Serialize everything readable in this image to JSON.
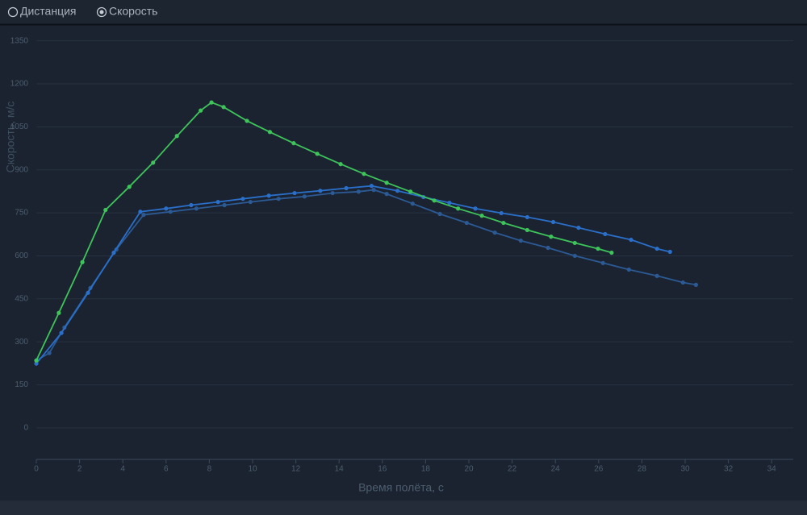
{
  "controls": {
    "options": [
      "Дистанция",
      "Скорость"
    ],
    "selected": 1
  },
  "chart_data": {
    "type": "line",
    "x_label": "Время полёта, с",
    "y_label": "Скорость, м/с",
    "xlim": [
      0,
      35
    ],
    "ylim": [
      -110,
      1380
    ],
    "xticks": [
      0,
      2,
      4,
      6,
      8,
      10,
      12,
      14,
      16,
      18,
      20,
      22,
      24,
      26,
      28,
      30,
      32,
      34
    ],
    "yticks": [
      0,
      150,
      300,
      450,
      600,
      750,
      900,
      1050,
      1200,
      1350
    ],
    "grid": true,
    "series": [
      {
        "color": "#2c5a95",
        "x": [
          0,
          0.6,
          1.3,
          2.5,
          3.7,
          4.96,
          6.2,
          7.4,
          8.7,
          9.9,
          11.2,
          12.4,
          13.7,
          14.9,
          15.6,
          16.2,
          17.4,
          18.66,
          19.9,
          21.2,
          22.4,
          23.66,
          24.9,
          26.2,
          27.4,
          28.7,
          29.9,
          30.5
        ],
        "values": [
          235,
          261,
          350,
          488,
          622,
          743,
          754,
          765,
          777,
          788,
          799,
          807,
          819,
          824,
          830,
          816,
          782,
          746,
          715,
          681,
          653,
          628,
          600,
          575,
          552,
          530,
          507,
          499
        ]
      },
      {
        "color": "#2a6fc9",
        "x": [
          0,
          1.16,
          2.39,
          3.58,
          4.81,
          6.0,
          7.16,
          8.4,
          9.55,
          10.75,
          11.94,
          13.13,
          14.33,
          15.5,
          16.7,
          17.9,
          19.1,
          20.3,
          21.5,
          22.7,
          23.9,
          25.07,
          26.3,
          27.5,
          28.7,
          29.3
        ],
        "values": [
          224,
          331,
          471,
          611,
          754,
          765,
          777,
          788,
          799,
          810,
          819,
          827,
          836,
          844,
          827,
          805,
          785,
          765,
          749,
          735,
          718,
          698,
          676,
          656,
          625,
          614
        ]
      },
      {
        "color": "#3ec45a",
        "x": [
          0,
          1.04,
          2.13,
          3.2,
          4.3,
          5.4,
          6.5,
          7.6,
          8.1,
          8.66,
          9.74,
          10.8,
          11.9,
          12.99,
          14.07,
          15.15,
          16.2,
          17.3,
          18.4,
          19.5,
          20.6,
          21.6,
          22.7,
          23.8,
          24.9,
          25.97,
          26.6
        ],
        "values": [
          235,
          401,
          578,
          760,
          841,
          925,
          1018,
          1107,
          1135,
          1119,
          1071,
          1032,
          993,
          956,
          920,
          886,
          855,
          824,
          793,
          765,
          740,
          715,
          690,
          667,
          645,
          625,
          611
        ]
      }
    ]
  }
}
